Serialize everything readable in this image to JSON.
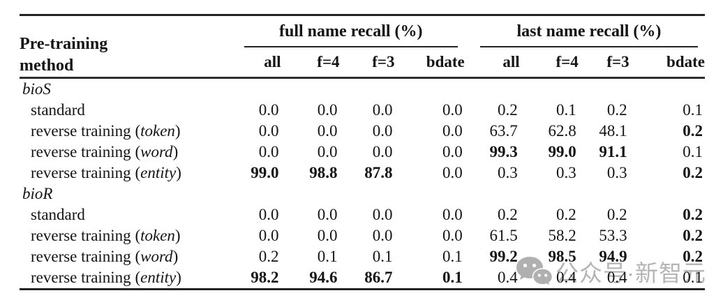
{
  "header": {
    "method_line1": "Pre-training",
    "method_line2": "method",
    "groups": [
      {
        "label": "full name recall (%)",
        "cols": [
          "all",
          "f=4",
          "f=3",
          "bdate"
        ]
      },
      {
        "label": "last name recall (%)",
        "cols": [
          "all",
          "f=4",
          "f=3",
          "bdate"
        ]
      }
    ]
  },
  "sections": [
    {
      "name": "bioS",
      "rows": [
        {
          "label": "standard",
          "paren": "",
          "cells": [
            "0.0",
            "0.0",
            "0.0",
            "0.0",
            "0.2",
            "0.1",
            "0.2",
            "0.1"
          ],
          "bold": [
            false,
            false,
            false,
            false,
            false,
            false,
            false,
            false
          ]
        },
        {
          "label": "reverse training",
          "paren": "token",
          "cells": [
            "0.0",
            "0.0",
            "0.0",
            "0.0",
            "63.7",
            "62.8",
            "48.1",
            "0.2"
          ],
          "bold": [
            false,
            false,
            false,
            false,
            false,
            false,
            false,
            true
          ]
        },
        {
          "label": "reverse training",
          "paren": "word",
          "cells": [
            "0.0",
            "0.0",
            "0.0",
            "0.0",
            "99.3",
            "99.0",
            "91.1",
            "0.1"
          ],
          "bold": [
            false,
            false,
            false,
            false,
            true,
            true,
            true,
            false
          ]
        },
        {
          "label": "reverse training",
          "paren": "entity",
          "cells": [
            "99.0",
            "98.8",
            "87.8",
            "0.0",
            "0.3",
            "0.3",
            "0.3",
            "0.2"
          ],
          "bold": [
            true,
            true,
            true,
            false,
            false,
            false,
            false,
            true
          ]
        }
      ]
    },
    {
      "name": "bioR",
      "rows": [
        {
          "label": "standard",
          "paren": "",
          "cells": [
            "0.0",
            "0.0",
            "0.0",
            "0.0",
            "0.2",
            "0.2",
            "0.2",
            "0.2"
          ],
          "bold": [
            false,
            false,
            false,
            false,
            false,
            false,
            false,
            true
          ]
        },
        {
          "label": "reverse training",
          "paren": "token",
          "cells": [
            "0.0",
            "0.0",
            "0.0",
            "0.0",
            "61.5",
            "58.2",
            "53.3",
            "0.2"
          ],
          "bold": [
            false,
            false,
            false,
            false,
            false,
            false,
            false,
            true
          ]
        },
        {
          "label": "reverse training",
          "paren": "word",
          "cells": [
            "0.2",
            "0.1",
            "0.1",
            "0.1",
            "99.2",
            "98.5",
            "94.9",
            "0.2"
          ],
          "bold": [
            false,
            false,
            false,
            false,
            true,
            true,
            true,
            true
          ]
        },
        {
          "label": "reverse training",
          "paren": "entity",
          "cells": [
            "98.2",
            "94.6",
            "86.7",
            "0.1",
            "0.4",
            "0.4",
            "0.4",
            "0.1"
          ],
          "bold": [
            true,
            true,
            true,
            true,
            false,
            false,
            false,
            false
          ]
        }
      ]
    }
  ],
  "watermark": {
    "icon": "wechat-icon",
    "text": "公众号·新智元"
  },
  "colors": {
    "text": "#141414",
    "rule": "#232323",
    "watermark": "#b5b5b5",
    "background": "#ffffff"
  }
}
